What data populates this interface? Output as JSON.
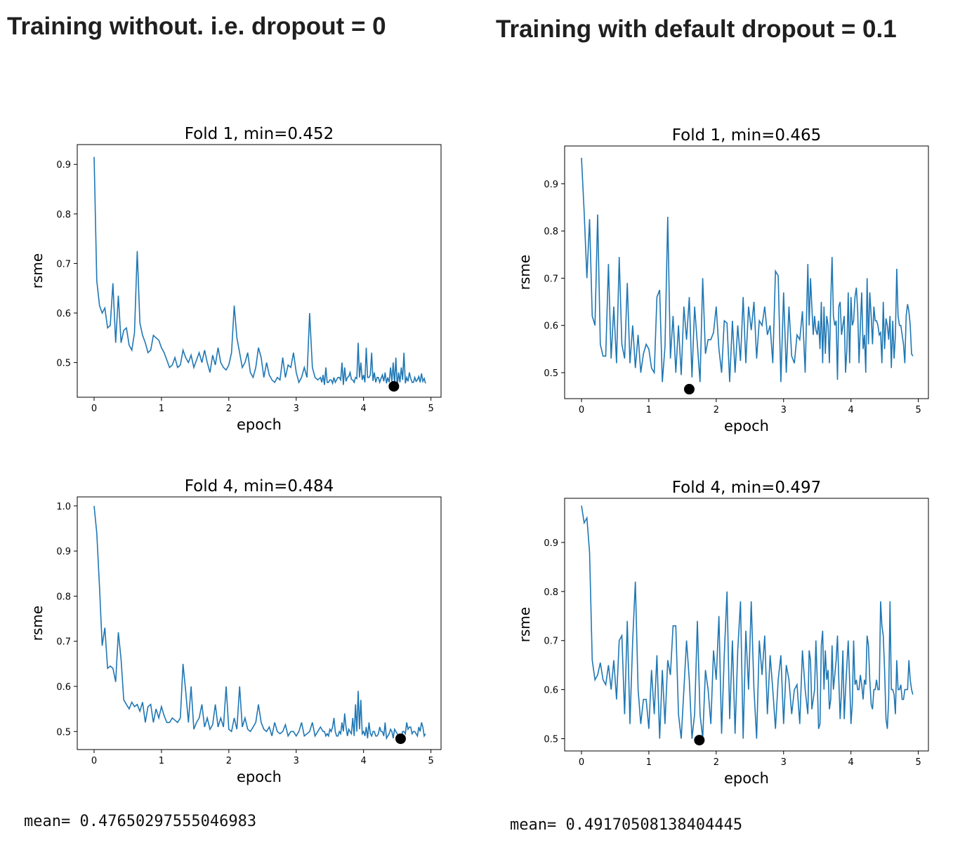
{
  "headings": {
    "left": "Training without. i.e. dropout = 0",
    "right": "Training with default dropout = 0.1"
  },
  "means": {
    "left": "mean= 0.47650297555046983",
    "right": "mean= 0.49170508138404445"
  },
  "colors": {
    "line": "#1f77b4",
    "marker": "#000000",
    "frame": "#000000"
  },
  "chart_data": [
    {
      "type": "line",
      "title": "Fold 1, min=0.452",
      "xlabel": "epoch",
      "ylabel": "rsme",
      "xlim": [
        -0.25,
        5.15
      ],
      "ylim": [
        0.43,
        0.94
      ],
      "xticks": [
        0,
        1,
        2,
        3,
        4,
        5
      ],
      "yticks": [
        0.5,
        0.6,
        0.7,
        0.8,
        0.9
      ],
      "ytick_labels": [
        "0.5",
        "0.6",
        "0.7",
        "0.8",
        "0.9"
      ],
      "min_point": {
        "x": 4.45,
        "y": 0.452
      },
      "x": [
        0.0,
        0.04,
        0.08,
        0.12,
        0.16,
        0.2,
        0.24,
        0.28,
        0.32,
        0.36,
        0.4,
        0.44,
        0.48,
        0.52,
        0.56,
        0.6,
        0.64,
        0.68,
        0.72,
        0.76,
        0.8,
        0.84,
        0.88,
        0.92,
        0.96,
        1.0,
        1.04,
        1.08,
        1.12,
        1.16,
        1.2,
        1.24,
        1.28,
        1.32,
        1.36,
        1.4,
        1.44,
        1.48,
        1.52,
        1.56,
        1.6,
        1.64,
        1.68,
        1.72,
        1.76,
        1.8,
        1.84,
        1.88,
        1.92,
        1.96,
        2.0,
        2.04,
        2.08,
        2.12,
        2.16,
        2.2,
        2.24,
        2.28,
        2.32,
        2.36,
        2.4,
        2.44,
        2.48,
        2.52,
        2.56,
        2.6,
        2.64,
        2.68,
        2.72,
        2.76,
        2.8,
        2.84,
        2.88,
        2.92,
        2.96,
        3.0,
        3.04,
        3.08,
        3.12,
        3.16,
        3.2,
        3.24,
        3.28,
        3.32,
        3.36,
        3.4,
        3.44,
        3.48,
        3.52,
        3.56,
        3.6,
        3.64,
        3.68,
        3.72,
        3.76,
        3.8,
        3.84,
        3.88,
        3.92,
        3.96,
        4.0,
        4.04,
        4.08,
        4.12,
        4.16,
        4.2,
        4.24,
        4.28,
        4.32,
        4.36,
        4.4,
        4.44,
        4.48,
        4.52,
        4.56,
        4.6,
        4.64,
        4.68,
        4.72,
        4.76,
        4.8,
        4.84,
        4.88,
        4.92
      ],
      "values": [
        0.915,
        0.665,
        0.615,
        0.6,
        0.61,
        0.57,
        0.575,
        0.66,
        0.54,
        0.635,
        0.54,
        0.565,
        0.57,
        0.535,
        0.525,
        0.56,
        0.725,
        0.58,
        0.555,
        0.54,
        0.52,
        0.525,
        0.555,
        0.55,
        0.545,
        0.53,
        0.52,
        0.505,
        0.49,
        0.495,
        0.51,
        0.49,
        0.495,
        0.525,
        0.51,
        0.5,
        0.515,
        0.49,
        0.505,
        0.52,
        0.5,
        0.525,
        0.5,
        0.48,
        0.515,
        0.495,
        0.53,
        0.5,
        0.49,
        0.485,
        0.495,
        0.52,
        0.615,
        0.55,
        0.52,
        0.49,
        0.5,
        0.52,
        0.48,
        0.47,
        0.49,
        0.53,
        0.51,
        0.47,
        0.5,
        0.475,
        0.465,
        0.46,
        0.47,
        0.465,
        0.51,
        0.47,
        0.495,
        0.49,
        0.52,
        0.48,
        0.46,
        0.47,
        0.49,
        0.47,
        0.6,
        0.49,
        0.47,
        0.465,
        0.47,
        0.475,
        0.49,
        0.46,
        0.465,
        0.47,
        0.465,
        0.47,
        0.5,
        0.49,
        0.47,
        0.48,
        0.465,
        0.47,
        0.54,
        0.5,
        0.475,
        0.53,
        0.47,
        0.52,
        0.48,
        0.47,
        0.46,
        0.475,
        0.48,
        0.47,
        0.49,
        0.5,
        0.51,
        0.48,
        0.49,
        0.52,
        0.47,
        0.48,
        0.46,
        0.47,
        0.465,
        0.46,
        0.462,
        0.458
      ],
      "pad_end": [
        0.46,
        0.455,
        0.46,
        0.465,
        0.458,
        0.46,
        0.47,
        0.465,
        0.455,
        0.462,
        0.472,
        0.466,
        0.46,
        0.468,
        0.47,
        0.465,
        0.46,
        0.47,
        0.475,
        0.463,
        0.46,
        0.47,
        0.468,
        0.462,
        0.458,
        0.46,
        0.462,
        0.455,
        0.452,
        0.46,
        0.465,
        0.458,
        0.462,
        0.468,
        0.46,
        0.462,
        0.472,
        0.478,
        0.468
      ]
    },
    {
      "type": "line",
      "title": "Fold 1, min=0.465",
      "xlabel": "epoch",
      "ylabel": "rsme",
      "xlim": [
        -0.25,
        5.15
      ],
      "ylim": [
        0.445,
        0.98
      ],
      "xticks": [
        0,
        1,
        2,
        3,
        4,
        5
      ],
      "yticks": [
        0.5,
        0.6,
        0.7,
        0.8,
        0.9
      ],
      "ytick_labels": [
        "0.5",
        "0.6",
        "0.7",
        "0.8",
        "0.9"
      ],
      "min_point": {
        "x": 1.6,
        "y": 0.465
      },
      "x": [
        0.0,
        0.04,
        0.08,
        0.12,
        0.16,
        0.2,
        0.24,
        0.28,
        0.32,
        0.36,
        0.4,
        0.44,
        0.48,
        0.52,
        0.56,
        0.6,
        0.64,
        0.68,
        0.72,
        0.76,
        0.8,
        0.84,
        0.88,
        0.92,
        0.96,
        1.0,
        1.04,
        1.08,
        1.12,
        1.16,
        1.2,
        1.24,
        1.28,
        1.32,
        1.36,
        1.4,
        1.44,
        1.48,
        1.52,
        1.56,
        1.6,
        1.64,
        1.68,
        1.72,
        1.76,
        1.8,
        1.84,
        1.88,
        1.92,
        1.96,
        2.0,
        2.04,
        2.08,
        2.12,
        2.16,
        2.2,
        2.24,
        2.28,
        2.32,
        2.36,
        2.4,
        2.44,
        2.48,
        2.52,
        2.56,
        2.6,
        2.64,
        2.68,
        2.72,
        2.76,
        2.8,
        2.84,
        2.88,
        2.92,
        2.96,
        3.0,
        3.04,
        3.08,
        3.12,
        3.16,
        3.2,
        3.24,
        3.28,
        3.32,
        3.36,
        3.4,
        3.44,
        3.48,
        3.52,
        3.56,
        3.6,
        3.64,
        3.68,
        3.72,
        3.76,
        3.8,
        3.84,
        3.88,
        3.92,
        3.96,
        4.0,
        4.04,
        4.08,
        4.12,
        4.16,
        4.2,
        4.24,
        4.28,
        4.32,
        4.36,
        4.4,
        4.44,
        4.48,
        4.52,
        4.56,
        4.6,
        4.64,
        4.68,
        4.72,
        4.76,
        4.8,
        4.84,
        4.88,
        4.92
      ],
      "values": [
        0.955,
        0.84,
        0.7,
        0.825,
        0.62,
        0.6,
        0.835,
        0.56,
        0.535,
        0.535,
        0.73,
        0.53,
        0.64,
        0.52,
        0.745,
        0.56,
        0.53,
        0.69,
        0.52,
        0.6,
        0.51,
        0.58,
        0.5,
        0.54,
        0.56,
        0.55,
        0.51,
        0.5,
        0.66,
        0.675,
        0.48,
        0.555,
        0.83,
        0.53,
        0.62,
        0.5,
        0.6,
        0.495,
        0.64,
        0.57,
        0.66,
        0.49,
        0.64,
        0.56,
        0.48,
        0.7,
        0.54,
        0.57,
        0.57,
        0.585,
        0.64,
        0.55,
        0.5,
        0.61,
        0.605,
        0.48,
        0.61,
        0.5,
        0.6,
        0.525,
        0.66,
        0.52,
        0.64,
        0.59,
        0.65,
        0.53,
        0.61,
        0.6,
        0.64,
        0.58,
        0.6,
        0.52,
        0.715,
        0.705,
        0.48,
        0.67,
        0.5,
        0.64,
        0.535,
        0.52,
        0.58,
        0.57,
        0.63,
        0.5,
        0.73,
        0.7,
        0.58,
        0.59,
        0.61,
        0.65,
        0.64,
        0.62,
        0.52,
        0.745,
        0.6,
        0.485,
        0.65,
        0.6,
        0.5,
        0.67,
        0.66,
        0.61,
        0.68,
        0.52,
        0.67,
        0.58,
        0.7,
        0.67,
        0.56,
        0.61,
        0.6,
        0.585,
        0.65,
        0.615,
        0.57,
        0.51,
        0.53,
        0.72,
        0.6,
        0.58,
        0.52,
        0.645,
        0.6,
        0.535
      ],
      "pad_end": [
        0.6,
        0.64,
        0.62,
        0.58,
        0.55,
        0.52,
        0.54,
        0.6,
        0.65,
        0.62,
        0.61,
        0.64,
        0.58,
        0.62,
        0.55,
        0.52,
        0.6,
        0.66,
        0.63,
        0.6,
        0.55,
        0.5,
        0.56,
        0.62,
        0.64,
        0.61,
        0.58,
        0.52,
        0.55,
        0.6,
        0.62,
        0.61,
        0.58,
        0.62,
        0.6,
        0.56,
        0.62,
        0.63,
        0.54
      ]
    },
    {
      "type": "line",
      "title": "Fold 4, min=0.484",
      "xlabel": "epoch",
      "ylabel": "rsme",
      "xlim": [
        -0.25,
        5.15
      ],
      "ylim": [
        0.46,
        1.02
      ],
      "xticks": [
        0,
        1,
        2,
        3,
        4,
        5
      ],
      "yticks": [
        0.5,
        0.6,
        0.7,
        0.8,
        0.9,
        1.0
      ],
      "ytick_labels": [
        "0.5",
        "0.6",
        "0.7",
        "0.8",
        "0.9",
        "1.0"
      ],
      "min_point": {
        "x": 4.55,
        "y": 0.484
      },
      "x": [
        0.0,
        0.04,
        0.08,
        0.12,
        0.16,
        0.2,
        0.24,
        0.28,
        0.32,
        0.36,
        0.4,
        0.44,
        0.48,
        0.52,
        0.56,
        0.6,
        0.64,
        0.68,
        0.72,
        0.76,
        0.8,
        0.84,
        0.88,
        0.92,
        0.96,
        1.0,
        1.04,
        1.08,
        1.12,
        1.16,
        1.2,
        1.24,
        1.28,
        1.32,
        1.36,
        1.4,
        1.44,
        1.48,
        1.52,
        1.56,
        1.6,
        1.64,
        1.68,
        1.72,
        1.76,
        1.8,
        1.84,
        1.88,
        1.92,
        1.96,
        2.0,
        2.04,
        2.08,
        2.12,
        2.16,
        2.2,
        2.24,
        2.28,
        2.32,
        2.36,
        2.4,
        2.44,
        2.48,
        2.52,
        2.56,
        2.6,
        2.64,
        2.68,
        2.72,
        2.76,
        2.8,
        2.84,
        2.88,
        2.92,
        2.96,
        3.0,
        3.04,
        3.08,
        3.12,
        3.16,
        3.2,
        3.24,
        3.28,
        3.32,
        3.36,
        3.4,
        3.44,
        3.48,
        3.52,
        3.56,
        3.6,
        3.64,
        3.68,
        3.72,
        3.76,
        3.8,
        3.84,
        3.88,
        3.92,
        3.96,
        4.0,
        4.04,
        4.08,
        4.12,
        4.16,
        4.2,
        4.24,
        4.28,
        4.32,
        4.36,
        4.4,
        4.44,
        4.48,
        4.52,
        4.56,
        4.6,
        4.64,
        4.68,
        4.72,
        4.76,
        4.8,
        4.84,
        4.88,
        4.92
      ],
      "values": [
        1.0,
        0.94,
        0.82,
        0.69,
        0.73,
        0.64,
        0.645,
        0.64,
        0.61,
        0.72,
        0.66,
        0.57,
        0.56,
        0.55,
        0.565,
        0.555,
        0.56,
        0.545,
        0.565,
        0.52,
        0.555,
        0.56,
        0.52,
        0.55,
        0.53,
        0.555,
        0.535,
        0.52,
        0.52,
        0.53,
        0.525,
        0.52,
        0.53,
        0.65,
        0.59,
        0.52,
        0.6,
        0.505,
        0.52,
        0.53,
        0.56,
        0.51,
        0.53,
        0.505,
        0.515,
        0.56,
        0.51,
        0.53,
        0.51,
        0.6,
        0.505,
        0.5,
        0.53,
        0.505,
        0.6,
        0.51,
        0.53,
        0.505,
        0.5,
        0.51,
        0.52,
        0.56,
        0.52,
        0.505,
        0.5,
        0.51,
        0.49,
        0.52,
        0.5,
        0.495,
        0.5,
        0.515,
        0.49,
        0.5,
        0.5,
        0.49,
        0.5,
        0.52,
        0.49,
        0.495,
        0.5,
        0.52,
        0.49,
        0.5,
        0.51,
        0.5,
        0.49,
        0.49,
        0.5,
        0.53,
        0.49,
        0.5,
        0.52,
        0.54,
        0.49,
        0.5,
        0.53,
        0.56,
        0.59,
        0.57,
        0.5,
        0.51,
        0.52,
        0.49,
        0.5,
        0.49,
        0.51,
        0.5,
        0.52,
        0.49,
        0.505,
        0.485,
        0.5,
        0.49,
        0.485,
        0.5,
        0.52,
        0.51,
        0.495,
        0.5,
        0.49,
        0.5,
        0.51,
        0.495
      ],
      "pad_end": [
        0.505,
        0.5,
        0.495,
        0.505,
        0.51,
        0.5,
        0.49,
        0.495,
        0.5,
        0.51,
        0.505,
        0.495,
        0.49,
        0.5,
        0.505,
        0.495,
        0.49,
        0.485,
        0.495,
        0.5,
        0.49,
        0.495,
        0.5,
        0.49,
        0.485,
        0.495,
        0.5,
        0.505,
        0.495,
        0.49,
        0.5,
        0.495,
        0.505,
        0.51,
        0.5,
        0.495,
        0.51,
        0.52,
        0.49
      ]
    },
    {
      "type": "line",
      "title": "Fold 4, min=0.497",
      "xlabel": "epoch",
      "ylabel": "rsme",
      "xlim": [
        -0.25,
        5.15
      ],
      "ylim": [
        0.475,
        0.99
      ],
      "xticks": [
        0,
        1,
        2,
        3,
        4,
        5
      ],
      "yticks": [
        0.5,
        0.6,
        0.7,
        0.8,
        0.9
      ],
      "ytick_labels": [
        "0.5",
        "0.6",
        "0.7",
        "0.8",
        "0.9"
      ],
      "min_point": {
        "x": 1.75,
        "y": 0.497
      },
      "x": [
        0.0,
        0.04,
        0.08,
        0.12,
        0.16,
        0.2,
        0.24,
        0.28,
        0.32,
        0.36,
        0.4,
        0.44,
        0.48,
        0.52,
        0.56,
        0.6,
        0.64,
        0.68,
        0.72,
        0.76,
        0.8,
        0.84,
        0.88,
        0.92,
        0.96,
        1.0,
        1.04,
        1.08,
        1.12,
        1.16,
        1.2,
        1.24,
        1.28,
        1.32,
        1.36,
        1.4,
        1.44,
        1.48,
        1.52,
        1.56,
        1.6,
        1.64,
        1.68,
        1.72,
        1.76,
        1.8,
        1.84,
        1.88,
        1.92,
        1.96,
        2.0,
        2.04,
        2.08,
        2.12,
        2.16,
        2.2,
        2.24,
        2.28,
        2.32,
        2.36,
        2.4,
        2.44,
        2.48,
        2.52,
        2.56,
        2.6,
        2.64,
        2.68,
        2.72,
        2.76,
        2.8,
        2.84,
        2.88,
        2.92,
        2.96,
        3.0,
        3.04,
        3.08,
        3.12,
        3.16,
        3.2,
        3.24,
        3.28,
        3.32,
        3.36,
        3.4,
        3.44,
        3.48,
        3.52,
        3.56,
        3.6,
        3.64,
        3.68,
        3.72,
        3.76,
        3.8,
        3.84,
        3.88,
        3.92,
        3.96,
        4.0,
        4.04,
        4.08,
        4.12,
        4.16,
        4.2,
        4.24,
        4.28,
        4.32,
        4.36,
        4.4,
        4.44,
        4.48,
        4.52,
        4.56,
        4.6,
        4.64,
        4.68,
        4.72,
        4.76,
        4.8,
        4.84,
        4.88,
        4.92
      ],
      "values": [
        0.975,
        0.94,
        0.95,
        0.88,
        0.66,
        0.62,
        0.63,
        0.655,
        0.62,
        0.61,
        0.65,
        0.6,
        0.66,
        0.58,
        0.7,
        0.71,
        0.55,
        0.74,
        0.53,
        0.7,
        0.82,
        0.6,
        0.53,
        0.58,
        0.58,
        0.52,
        0.64,
        0.55,
        0.67,
        0.5,
        0.64,
        0.53,
        0.66,
        0.63,
        0.73,
        0.73,
        0.55,
        0.5,
        0.6,
        0.7,
        0.62,
        0.5,
        0.55,
        0.74,
        0.55,
        0.5,
        0.64,
        0.6,
        0.53,
        0.68,
        0.62,
        0.75,
        0.51,
        0.67,
        0.8,
        0.54,
        0.7,
        0.51,
        0.68,
        0.78,
        0.5,
        0.72,
        0.6,
        0.78,
        0.6,
        0.5,
        0.7,
        0.63,
        0.71,
        0.55,
        0.67,
        0.6,
        0.52,
        0.62,
        0.67,
        0.53,
        0.65,
        0.62,
        0.55,
        0.6,
        0.61,
        0.53,
        0.68,
        0.6,
        0.55,
        0.66,
        0.58,
        0.7,
        0.52,
        0.69,
        0.6,
        0.62,
        0.56,
        0.69,
        0.63,
        0.71,
        0.54,
        0.68,
        0.6,
        0.7,
        0.53,
        0.7,
        0.62,
        0.6,
        0.61,
        0.62,
        0.71,
        0.62,
        0.56,
        0.6,
        0.6,
        0.78,
        0.71,
        0.54,
        0.58,
        0.6,
        0.59,
        0.66,
        0.6,
        0.58,
        0.6,
        0.6,
        0.62,
        0.59
      ],
      "pad_end": [
        0.68,
        0.56,
        0.6,
        0.62,
        0.53,
        0.72,
        0.68,
        0.64,
        0.58,
        0.6,
        0.66,
        0.62,
        0.6,
        0.54,
        0.65,
        0.62,
        0.57,
        0.61,
        0.6,
        0.63,
        0.58,
        0.61,
        0.69,
        0.57,
        0.6,
        0.62,
        0.6,
        0.73,
        0.64,
        0.52,
        0.78,
        0.6,
        0.55,
        0.6,
        0.61,
        0.58,
        0.6,
        0.66,
        0.6
      ]
    }
  ]
}
